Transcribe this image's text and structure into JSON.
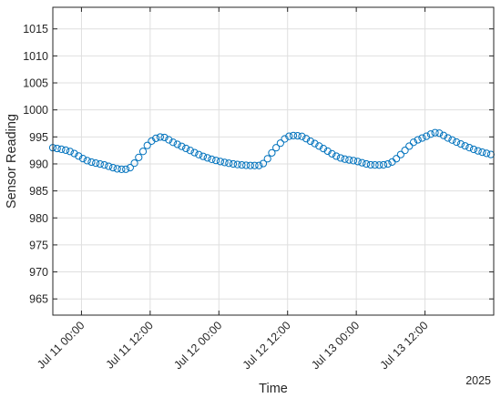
{
  "chart_data": {
    "type": "scatter",
    "title": "",
    "xlabel": "Time",
    "ylabel": "Sensor Reading",
    "year_label": "2025",
    "xlim": [
      "2025-07-10 19:00",
      "2025-07-14 00:00"
    ],
    "ylim": [
      962,
      1019
    ],
    "xticks": [
      {
        "t": "2025-07-11 00:00",
        "label": "Jul 11 00:00"
      },
      {
        "t": "2025-07-11 12:00",
        "label": "Jul 11 12:00"
      },
      {
        "t": "2025-07-12 00:00",
        "label": "Jul 12 00:00"
      },
      {
        "t": "2025-07-12 12:00",
        "label": "Jul 12 12:00"
      },
      {
        "t": "2025-07-13 00:00",
        "label": "Jul 13 00:00"
      },
      {
        "t": "2025-07-13 12:00",
        "label": "Jul 13 12:00"
      }
    ],
    "yticks": [
      965,
      970,
      975,
      980,
      985,
      990,
      995,
      1000,
      1005,
      1010,
      1015
    ],
    "grid": true,
    "marker": "circle",
    "color": "#0072BD",
    "series": [
      {
        "x": [
          "2025-07-10 19:00",
          "2025-07-10 22:00",
          "2025-07-11 01:00",
          "2025-07-11 04:00",
          "2025-07-11 07:00",
          "2025-07-11 08:30",
          "2025-07-11 10:00",
          "2025-07-11 12:00",
          "2025-07-11 14:00",
          "2025-07-11 16:00",
          "2025-07-11 18:00",
          "2025-07-11 21:00",
          "2025-07-12 00:00",
          "2025-07-12 04:00",
          "2025-07-12 07:00",
          "2025-07-12 10:00",
          "2025-07-12 12:00",
          "2025-07-12 14:00",
          "2025-07-12 16:00",
          "2025-07-12 18:00",
          "2025-07-12 21:00",
          "2025-07-13 00:00",
          "2025-07-13 03:00",
          "2025-07-13 06:00",
          "2025-07-13 08:30",
          "2025-07-13 10:00",
          "2025-07-13 12:00",
          "2025-07-13 14:00",
          "2025-07-13 16:00",
          "2025-07-13 18:00",
          "2025-07-13 21:00",
          "2025-07-14 00:00"
        ],
        "y": [
          993.0,
          992.3,
          990.6,
          989.8,
          989.0,
          989.3,
          991.2,
          994.0,
          995.0,
          994.0,
          993.0,
          991.5,
          990.5,
          989.8,
          989.7,
          993.0,
          995.0,
          995.2,
          994.2,
          993.0,
          991.2,
          990.5,
          989.8,
          990.2,
          992.5,
          994.0,
          995.0,
          995.8,
          994.8,
          993.8,
          992.5,
          991.6
        ]
      }
    ]
  }
}
